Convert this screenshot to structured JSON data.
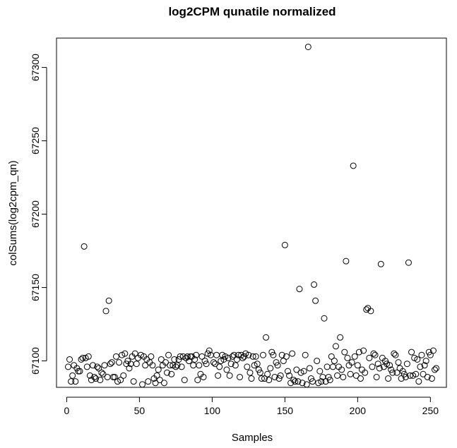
{
  "chart_data": {
    "type": "scatter",
    "title": "log2CPM qunatile normalized",
    "xlabel": "Samples",
    "ylabel": "colSums(log2cpm_qn)",
    "xlim": [
      -7,
      261
    ],
    "ylim": [
      67082,
      67320
    ],
    "xticks": [
      0,
      50,
      100,
      150,
      200,
      250
    ],
    "yticks": [
      67100,
      67150,
      67200,
      67250,
      67300
    ],
    "grid": false,
    "marker": "open-circle",
    "outliers": [
      {
        "x": 12,
        "y": 67178
      },
      {
        "x": 27,
        "y": 67134
      },
      {
        "x": 29,
        "y": 67141
      },
      {
        "x": 137,
        "y": 67116
      },
      {
        "x": 150,
        "y": 67179
      },
      {
        "x": 160,
        "y": 67149
      },
      {
        "x": 166,
        "y": 67314
      },
      {
        "x": 170,
        "y": 67152
      },
      {
        "x": 171,
        "y": 67141
      },
      {
        "x": 177,
        "y": 67129
      },
      {
        "x": 188,
        "y": 67116
      },
      {
        "x": 192,
        "y": 67168
      },
      {
        "x": 197,
        "y": 67233
      },
      {
        "x": 206,
        "y": 67135
      },
      {
        "x": 207,
        "y": 67136
      },
      {
        "x": 209,
        "y": 67134
      },
      {
        "x": 216,
        "y": 67166
      },
      {
        "x": 235,
        "y": 67167
      }
    ],
    "bulk": [
      [
        1,
        67096
      ],
      [
        2,
        67101
      ],
      [
        3,
        67086
      ],
      [
        4,
        67090
      ],
      [
        5,
        67097
      ],
      [
        6,
        67086
      ],
      [
        7,
        67095
      ],
      [
        8,
        67093
      ],
      [
        9,
        67093
      ],
      [
        10,
        67101
      ],
      [
        11,
        67102
      ],
      [
        13,
        67102
      ],
      [
        14,
        67096
      ],
      [
        15,
        67103
      ],
      [
        16,
        67090
      ],
      [
        17,
        67087
      ],
      [
        18,
        67097
      ],
      [
        19,
        67089
      ],
      [
        20,
        67088
      ],
      [
        21,
        67096
      ],
      [
        22,
        67095
      ],
      [
        23,
        67087
      ],
      [
        24,
        67092
      ],
      [
        25,
        67091
      ],
      [
        26,
        67097
      ],
      [
        28,
        67089
      ],
      [
        30,
        67098
      ],
      [
        31,
        67099
      ],
      [
        32,
        67089
      ],
      [
        33,
        67089
      ],
      [
        34,
        67103
      ],
      [
        35,
        67086
      ],
      [
        36,
        67099
      ],
      [
        37,
        67087
      ],
      [
        38,
        67104
      ],
      [
        39,
        67090
      ],
      [
        40,
        67105
      ],
      [
        41,
        67098
      ],
      [
        42,
        67100
      ],
      [
        43,
        67095
      ],
      [
        44,
        67098
      ],
      [
        45,
        67103
      ],
      [
        46,
        67086
      ],
      [
        47,
        67105
      ],
      [
        48,
        67098
      ],
      [
        49,
        67102
      ],
      [
        51,
        67104
      ],
      [
        52,
        67084
      ],
      [
        53,
        67103
      ],
      [
        54,
        67097
      ],
      [
        55,
        67101
      ],
      [
        56,
        67086
      ],
      [
        57,
        67099
      ],
      [
        58,
        67103
      ],
      [
        59,
        67097
      ],
      [
        60,
        67088
      ],
      [
        61,
        67085
      ],
      [
        62,
        67090
      ],
      [
        63,
        67094
      ],
      [
        64,
        67087
      ],
      [
        65,
        67101
      ],
      [
        66,
        67097
      ],
      [
        67,
        67085
      ],
      [
        68,
        67099
      ],
      [
        69,
        67092
      ],
      [
        70,
        67104
      ],
      [
        71,
        67097
      ],
      [
        72,
        67091
      ],
      [
        73,
        67097
      ],
      [
        74,
        67101
      ],
      [
        75,
        67096
      ],
      [
        76,
        67097
      ],
      [
        77,
        67101
      ],
      [
        78,
        67103
      ],
      [
        79,
        67096
      ],
      [
        80,
        67103
      ],
      [
        81,
        67087
      ],
      [
        82,
        67102
      ],
      [
        83,
        67103
      ],
      [
        84,
        67100
      ],
      [
        85,
        67103
      ],
      [
        86,
        67103
      ],
      [
        87,
        67097
      ],
      [
        88,
        67101
      ],
      [
        89,
        67104
      ],
      [
        90,
        67087
      ],
      [
        91,
        67097
      ],
      [
        92,
        67091
      ],
      [
        93,
        67103
      ],
      [
        94,
        67089
      ],
      [
        95,
        67100
      ],
      [
        96,
        67098
      ],
      [
        97,
        67105
      ],
      [
        98,
        67107
      ],
      [
        99,
        67104
      ],
      [
        101,
        67099
      ],
      [
        102,
        67098
      ],
      [
        103,
        67104
      ],
      [
        104,
        67090
      ],
      [
        105,
        67096
      ],
      [
        106,
        67100
      ],
      [
        107,
        67104
      ],
      [
        108,
        67101
      ],
      [
        109,
        67103
      ],
      [
        110,
        67094
      ],
      [
        111,
        67102
      ],
      [
        112,
        67090
      ],
      [
        113,
        67098
      ],
      [
        114,
        67103
      ],
      [
        115,
        67104
      ],
      [
        116,
        67097
      ],
      [
        117,
        67101
      ],
      [
        118,
        67104
      ],
      [
        119,
        67089
      ],
      [
        120,
        67104
      ],
      [
        121,
        67102
      ],
      [
        122,
        67103
      ],
      [
        123,
        67105
      ],
      [
        124,
        67096
      ],
      [
        125,
        67104
      ],
      [
        126,
        67092
      ],
      [
        127,
        67088
      ],
      [
        128,
        67103
      ],
      [
        129,
        67097
      ],
      [
        130,
        67103
      ],
      [
        131,
        67098
      ],
      [
        132,
        67094
      ],
      [
        133,
        67092
      ],
      [
        134,
        67088
      ],
      [
        135,
        67104
      ],
      [
        136,
        67088
      ],
      [
        138,
        67091
      ],
      [
        139,
        67087
      ],
      [
        140,
        67095
      ],
      [
        141,
        67106
      ],
      [
        142,
        67104
      ],
      [
        143,
        67089
      ],
      [
        144,
        67099
      ],
      [
        145,
        67097
      ],
      [
        146,
        67088
      ],
      [
        147,
        67090
      ],
      [
        148,
        67104
      ],
      [
        149,
        67100
      ],
      [
        151,
        67103
      ],
      [
        152,
        67093
      ],
      [
        153,
        67090
      ],
      [
        154,
        67085
      ],
      [
        155,
        67105
      ],
      [
        156,
        67087
      ],
      [
        157,
        67086
      ],
      [
        158,
        67094
      ],
      [
        159,
        67086
      ],
      [
        161,
        67092
      ],
      [
        162,
        67085
      ],
      [
        163,
        67093
      ],
      [
        164,
        67104
      ],
      [
        165,
        67084
      ],
      [
        167,
        67095
      ],
      [
        168,
        67088
      ],
      [
        169,
        67086
      ],
      [
        172,
        67100
      ],
      [
        173,
        67085
      ],
      [
        174,
        67093
      ],
      [
        175,
        67086
      ],
      [
        176,
        67089
      ],
      [
        178,
        67086
      ],
      [
        179,
        67096
      ],
      [
        180,
        67089
      ],
      [
        181,
        67087
      ],
      [
        182,
        67103
      ],
      [
        183,
        67096
      ],
      [
        184,
        67100
      ],
      [
        185,
        67110
      ],
      [
        186,
        67090
      ],
      [
        187,
        67096
      ],
      [
        189,
        67094
      ],
      [
        190,
        67089
      ],
      [
        191,
        67106
      ],
      [
        193,
        67102
      ],
      [
        194,
        67097
      ],
      [
        195,
        67091
      ],
      [
        196,
        67099
      ],
      [
        198,
        67103
      ],
      [
        199,
        67090
      ],
      [
        200,
        67097
      ],
      [
        201,
        67106
      ],
      [
        202,
        67088
      ],
      [
        203,
        67094
      ],
      [
        204,
        67107
      ],
      [
        205,
        67092
      ],
      [
        208,
        67102
      ],
      [
        210,
        67096
      ],
      [
        211,
        67105
      ],
      [
        212,
        67104
      ],
      [
        213,
        67089
      ],
      [
        214,
        67098
      ],
      [
        215,
        67095
      ],
      [
        217,
        67102
      ],
      [
        218,
        67096
      ],
      [
        219,
        67100
      ],
      [
        220,
        67098
      ],
      [
        221,
        67088
      ],
      [
        222,
        67097
      ],
      [
        223,
        67094
      ],
      [
        224,
        67092
      ],
      [
        225,
        67105
      ],
      [
        226,
        67104
      ],
      [
        227,
        67092
      ],
      [
        228,
        67099
      ],
      [
        229,
        67095
      ],
      [
        230,
        67088
      ],
      [
        231,
        67093
      ],
      [
        232,
        67091
      ],
      [
        233,
        67089
      ],
      [
        234,
        67098
      ],
      [
        236,
        67090
      ],
      [
        237,
        67106
      ],
      [
        238,
        67090
      ],
      [
        239,
        67102
      ],
      [
        240,
        67091
      ],
      [
        241,
        67101
      ],
      [
        242,
        67086
      ],
      [
        243,
        67096
      ],
      [
        244,
        67104
      ],
      [
        245,
        67091
      ],
      [
        246,
        67097
      ],
      [
        247,
        67100
      ],
      [
        248,
        67089
      ],
      [
        249,
        67106
      ],
      [
        250,
        67104
      ],
      [
        251,
        67088
      ],
      [
        252,
        67107
      ],
      [
        253,
        67094
      ],
      [
        254,
        67095
      ]
    ]
  }
}
